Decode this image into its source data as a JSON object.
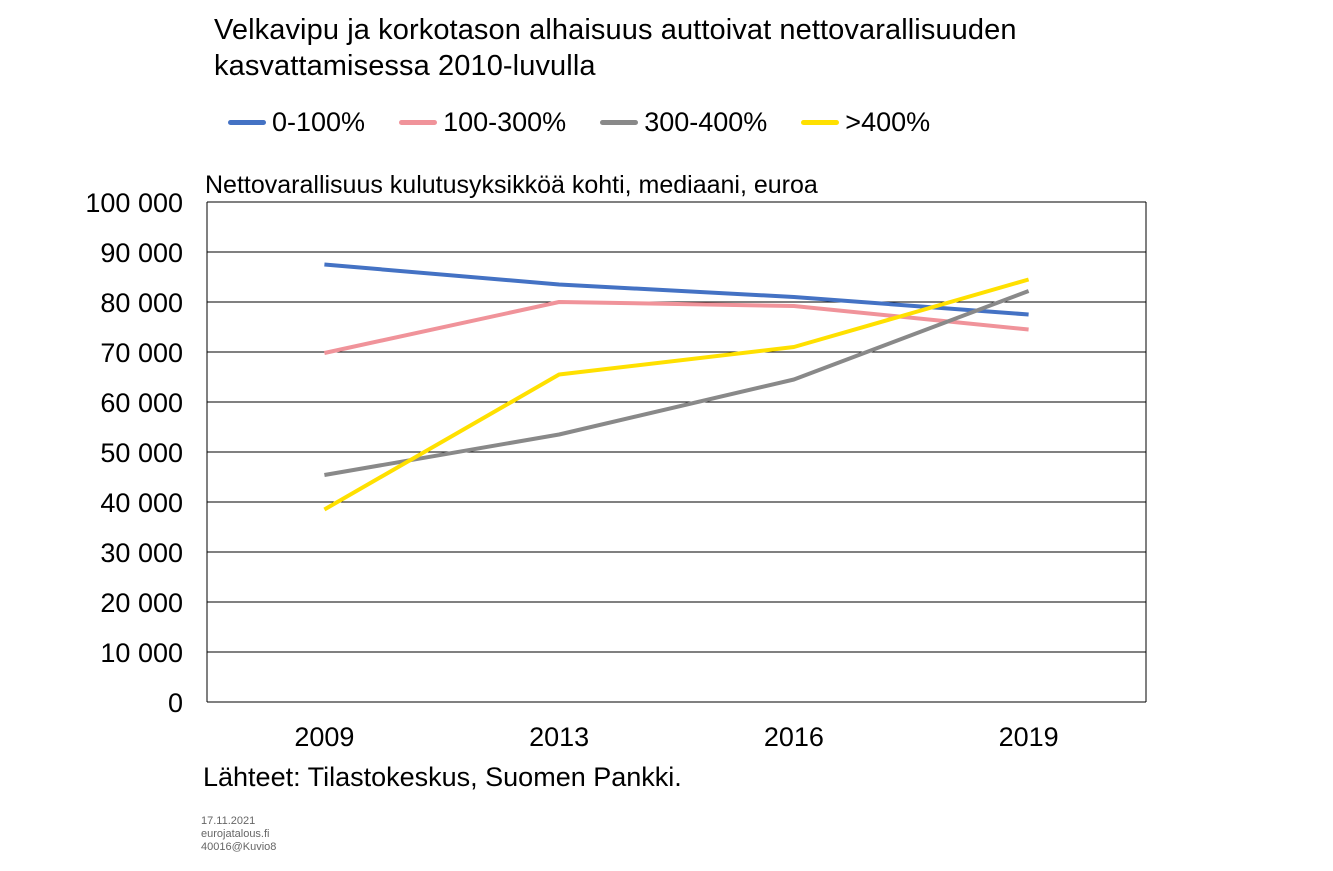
{
  "colors": {
    "series_0_100": "#4472C4",
    "series_100_300": "#F0939A",
    "series_300_400": "#898989",
    "series_400_plus": "#FFE000",
    "gridline": "#000000",
    "axis": "#000000"
  },
  "chart_data": {
    "type": "line",
    "title": "Velkavipu ja korkotason alhaisuus auttoivat nettovarallisuuden kasvattamisessa 2010-luvulla",
    "subtitle": "Nettovarallisuus kulutusyksikköä kohti, mediaani, euroa",
    "xlabel": "",
    "ylabel": "",
    "categories": [
      "2009",
      "2013",
      "2016",
      "2019"
    ],
    "ylim": [
      0,
      100000
    ],
    "yticks": [
      0,
      10000,
      20000,
      30000,
      40000,
      50000,
      60000,
      70000,
      80000,
      90000,
      100000
    ],
    "ytick_labels": [
      "0",
      "10 000",
      "20 000",
      "30 000",
      "40 000",
      "50 000",
      "60 000",
      "70 000",
      "80 000",
      "90 000",
      "100 000"
    ],
    "grid": true,
    "legend_position": "top",
    "series": [
      {
        "name": "0-100%",
        "color": "#4472C4",
        "values": [
          87500,
          83500,
          81000,
          77500
        ]
      },
      {
        "name": "100-300%",
        "color": "#F0939A",
        "values": [
          69800,
          80000,
          79200,
          74500
        ]
      },
      {
        "name": "300-400%",
        "color": "#898989",
        "values": [
          45400,
          53500,
          64500,
          82200
        ]
      },
      {
        "name": ">400%",
        "color": "#FFE000",
        "values": [
          38500,
          65500,
          71000,
          84500
        ]
      }
    ]
  },
  "source_text": "Lähteet: Tilastokeskus, Suomen Pankki.",
  "footer": {
    "date": "17.11.2021",
    "site": "eurojatalous.fi",
    "code": "40016@Kuvio8"
  }
}
